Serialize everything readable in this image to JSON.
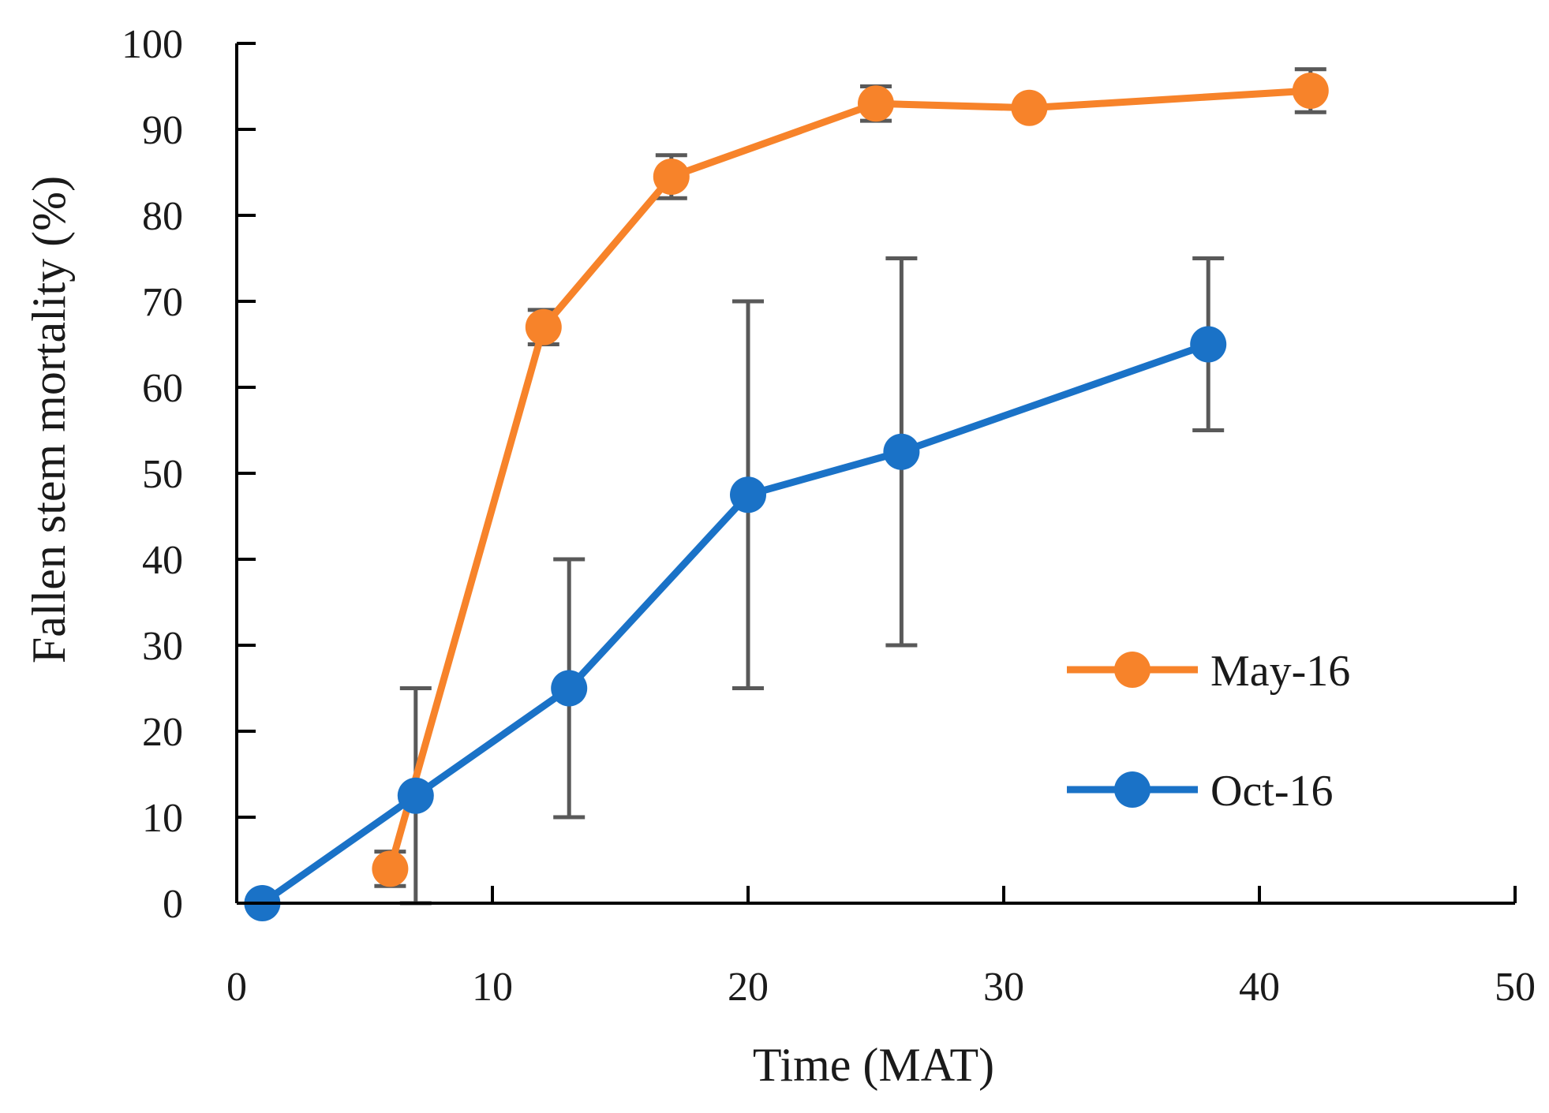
{
  "chart_data": {
    "type": "line",
    "title": "",
    "xlabel": "Time (MAT)",
    "ylabel": "Fallen stem mortality (%)",
    "xlim": [
      0,
      50
    ],
    "ylim": [
      0,
      100
    ],
    "x_ticks": [
      "0",
      "10",
      "20",
      "30",
      "40",
      "50"
    ],
    "y_ticks": [
      "0",
      "10",
      "20",
      "30",
      "40",
      "50",
      "60",
      "70",
      "80",
      "90",
      "100"
    ],
    "grid": false,
    "legend_position": "right",
    "series": [
      {
        "name": "May-16",
        "color": "#F7832A",
        "points": [
          {
            "x": 6,
            "y": 4,
            "err_low": 2,
            "err_high": 6
          },
          {
            "x": 12,
            "y": 67,
            "err_low": 65,
            "err_high": 69
          },
          {
            "x": 17,
            "y": 84.5,
            "err_low": 82,
            "err_high": 87
          },
          {
            "x": 25,
            "y": 93,
            "err_low": 91,
            "err_high": 95
          },
          {
            "x": 31,
            "y": 92.5,
            "err_low": 92,
            "err_high": 93
          },
          {
            "x": 42,
            "y": 94.5,
            "err_low": 92,
            "err_high": 97
          }
        ]
      },
      {
        "name": "Oct-16",
        "color": "#1A72C7",
        "points": [
          {
            "x": 1,
            "y": 0,
            "err_low": 0,
            "err_high": 0
          },
          {
            "x": 7,
            "y": 12.5,
            "err_low": 0,
            "err_high": 25
          },
          {
            "x": 13,
            "y": 25,
            "err_low": 10,
            "err_high": 40
          },
          {
            "x": 20,
            "y": 47.5,
            "err_low": 25,
            "err_high": 70
          },
          {
            "x": 26,
            "y": 52.5,
            "err_low": 30,
            "err_high": 75
          },
          {
            "x": 38,
            "y": 65,
            "err_low": 55,
            "err_high": 75
          }
        ]
      }
    ],
    "error_bar_color": "#595959"
  }
}
